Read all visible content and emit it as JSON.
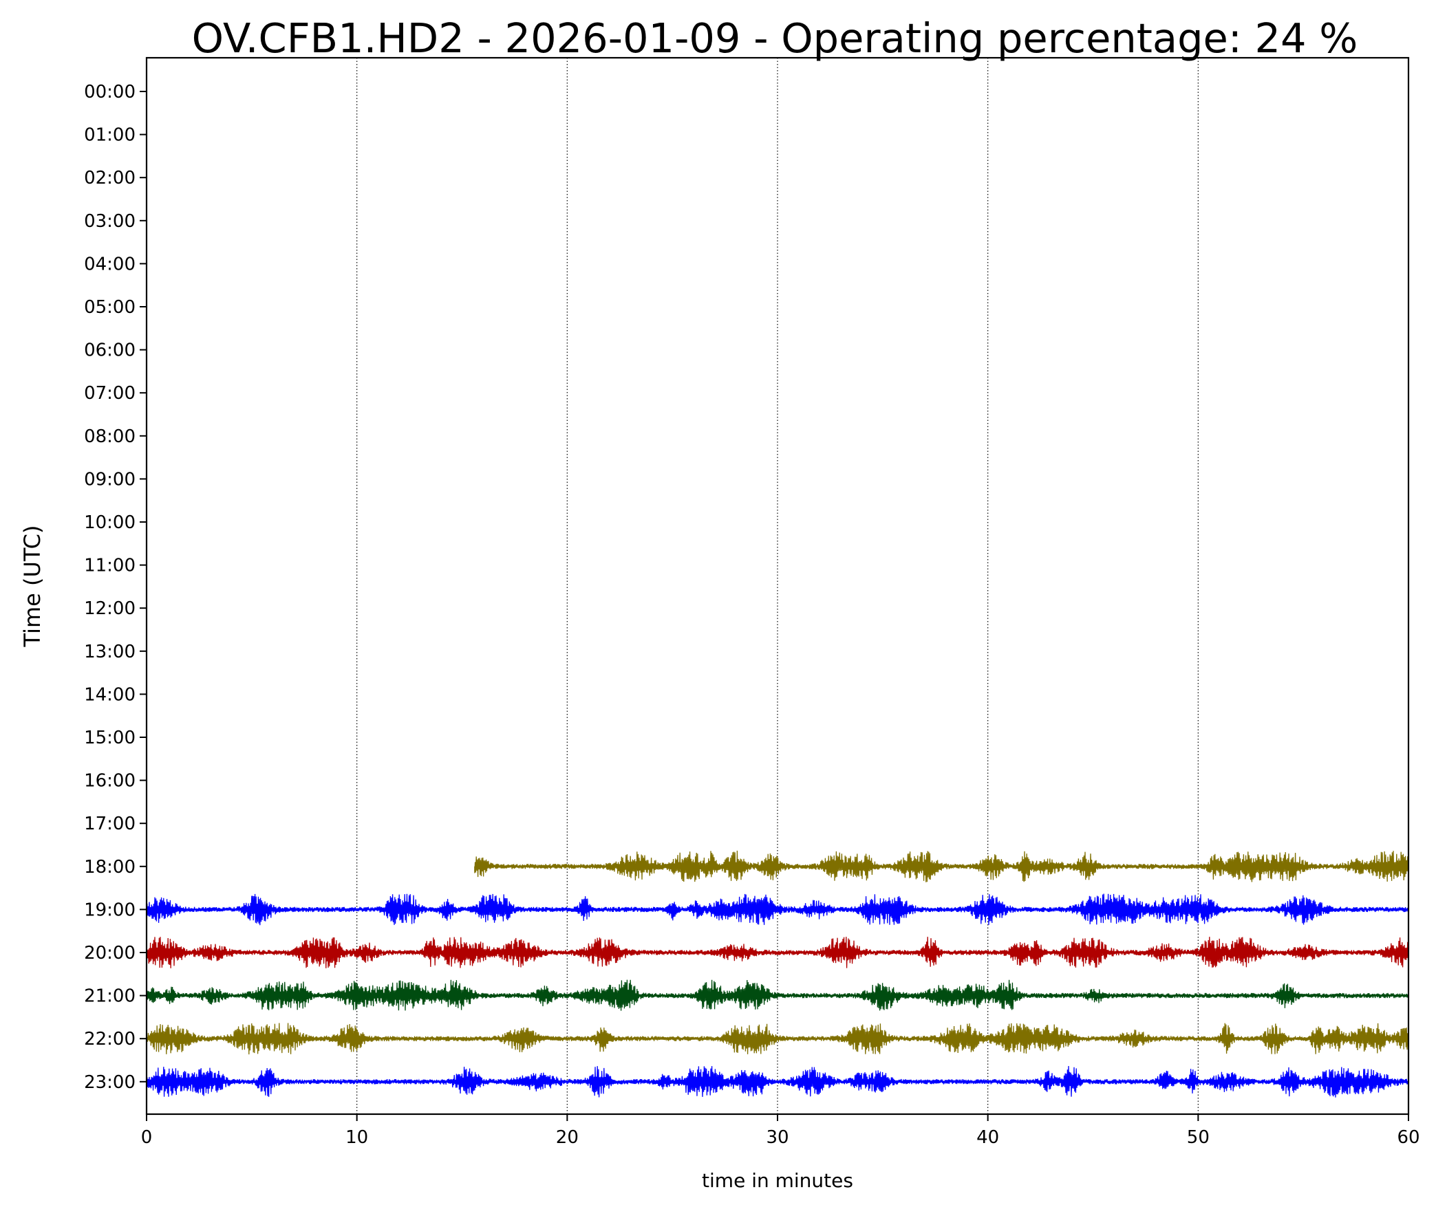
{
  "chart_data": {
    "type": "line",
    "title": "OV.CFB1.HD2 - 2026-01-09 - Operating percentage: 24 %",
    "xlabel": "time in minutes",
    "ylabel": "Time (UTC)",
    "xlim": [
      0,
      60
    ],
    "x_ticks": [
      0,
      10,
      20,
      30,
      40,
      50,
      60
    ],
    "x_tick_labels": [
      "0",
      "10",
      "20",
      "30",
      "40",
      "50",
      "60"
    ],
    "x_grid": "dotted vertical lines at each x tick",
    "y_tick_labels": [
      "00:00",
      "01:00",
      "02:00",
      "03:00",
      "04:00",
      "05:00",
      "06:00",
      "07:00",
      "08:00",
      "09:00",
      "10:00",
      "11:00",
      "12:00",
      "13:00",
      "14:00",
      "15:00",
      "16:00",
      "17:00",
      "18:00",
      "19:00",
      "20:00",
      "21:00",
      "22:00",
      "23:00"
    ],
    "series": [
      {
        "hour": "18:00",
        "start_minute": 15.6,
        "end_minute": 60,
        "color": "#7f6f00"
      },
      {
        "hour": "19:00",
        "start_minute": 0,
        "end_minute": 60,
        "color": "#0000ff"
      },
      {
        "hour": "20:00",
        "start_minute": 0,
        "end_minute": 60,
        "color": "#b00000"
      },
      {
        "hour": "21:00",
        "start_minute": 0,
        "end_minute": 60,
        "color": "#004c10"
      },
      {
        "hour": "22:00",
        "start_minute": 0,
        "end_minute": 60,
        "color": "#7f6f00"
      },
      {
        "hour": "23:00",
        "start_minute": 0,
        "end_minute": 60,
        "color": "#0000ff"
      }
    ]
  }
}
